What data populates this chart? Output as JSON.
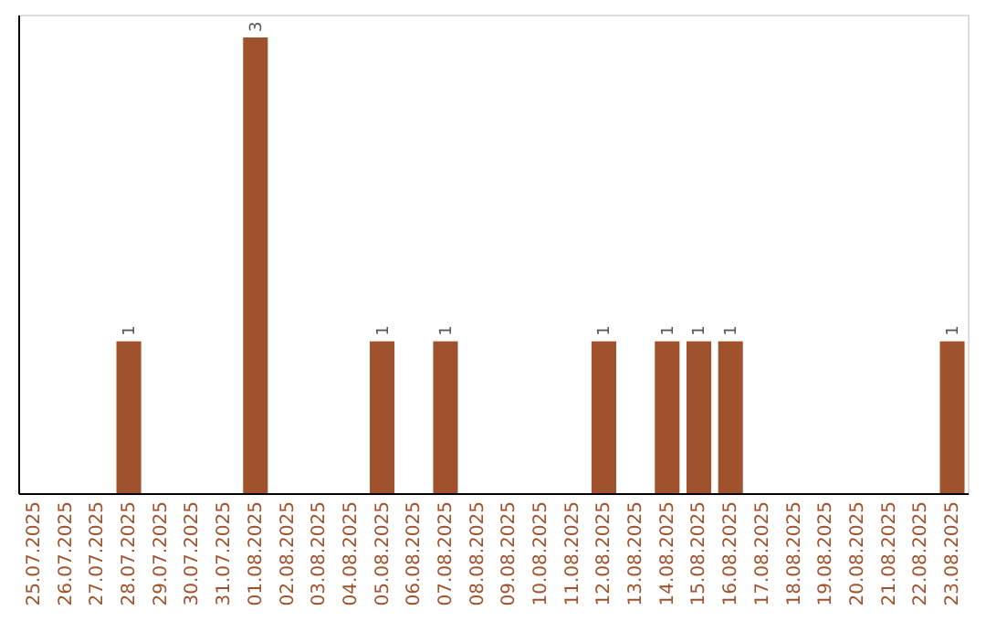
{
  "chart_data": {
    "type": "bar",
    "categories": [
      "25.07.2025",
      "26.07.2025",
      "27.07.2025",
      "28.07.2025",
      "29.07.2025",
      "30.07.2025",
      "31.07.2025",
      "01.08.2025",
      "02.08.2025",
      "03.08.2025",
      "04.08.2025",
      "05.08.2025",
      "06.08.2025",
      "07.08.2025",
      "08.08.2025",
      "09.08.2025",
      "10.08.2025",
      "11.08.2025",
      "12.08.2025",
      "13.08.2025",
      "14.08.2025",
      "15.08.2025",
      "16.08.2025",
      "17.08.2025",
      "18.08.2025",
      "19.08.2025",
      "20.08.2025",
      "21.08.2025",
      "22.08.2025",
      "23.08.2025"
    ],
    "values": [
      0,
      0,
      0,
      1,
      0,
      0,
      0,
      3,
      0,
      0,
      0,
      1,
      0,
      1,
      0,
      0,
      0,
      0,
      1,
      0,
      1,
      1,
      1,
      0,
      0,
      0,
      0,
      0,
      0,
      1
    ],
    "value_labels": [
      null,
      null,
      null,
      "1",
      null,
      null,
      null,
      "3",
      null,
      null,
      null,
      "1",
      null,
      "1",
      null,
      null,
      null,
      null,
      "1",
      null,
      "1",
      "1",
      "1",
      null,
      null,
      null,
      null,
      null,
      null,
      "1"
    ],
    "color": "#a0522d",
    "ylim": [
      0,
      3.15
    ],
    "tick_labels": "x",
    "grid": false
  }
}
